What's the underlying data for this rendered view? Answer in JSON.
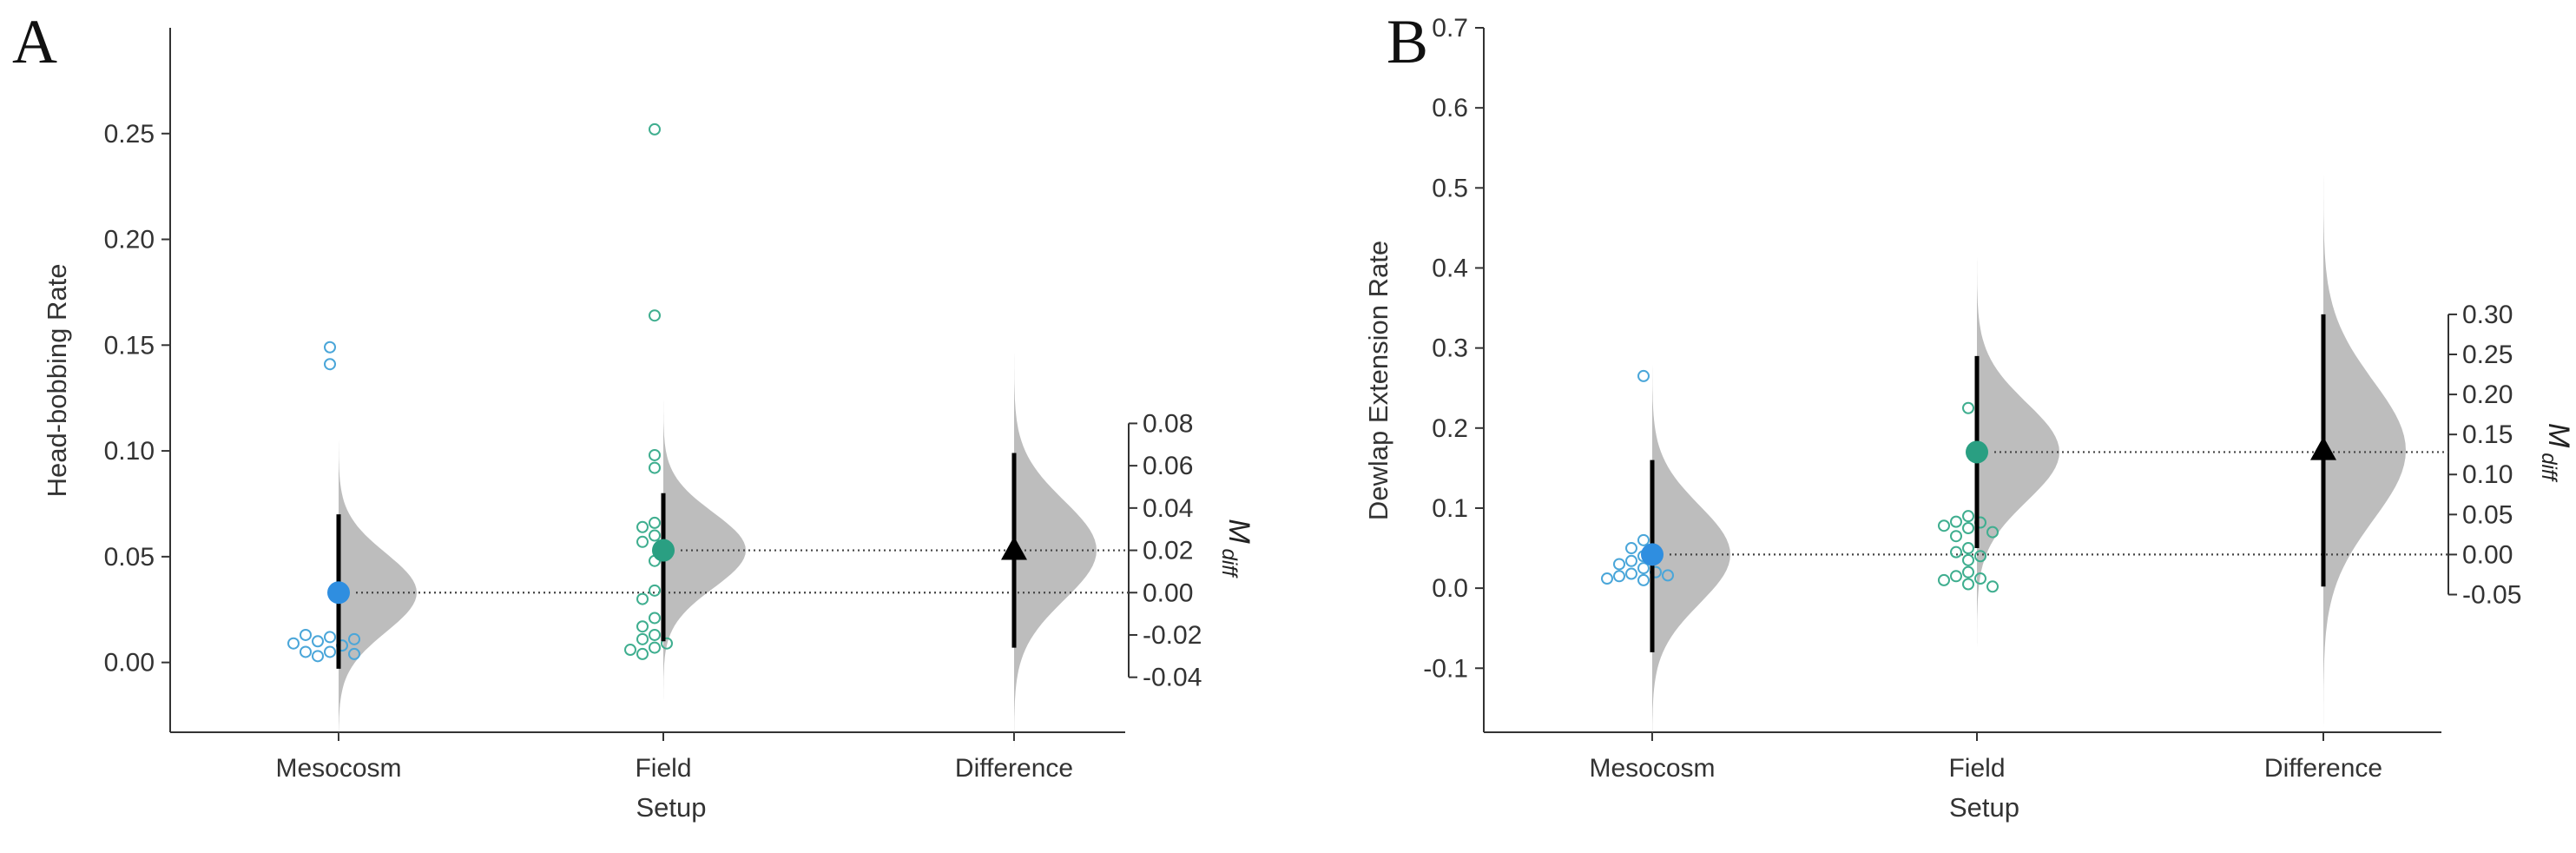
{
  "colors": {
    "mesocosm": "#2f8ee0",
    "field": "#2a9f82",
    "mesocosm_ring": "#4aa6d9",
    "field_ring": "#3fae8f",
    "difference": "#000000",
    "dist_fill": "#bdbdbd",
    "axis": "#333333"
  },
  "chart_data": [
    {
      "type": "scatter",
      "panel": "A",
      "xlabel": "Setup",
      "ylabel": "Head-bobbing Rate",
      "categories": [
        "Mesocosm",
        "Field",
        "Difference"
      ],
      "ylim": [
        -0.033,
        0.3
      ],
      "yticks": [
        0.0,
        0.05,
        0.1,
        0.15,
        0.2,
        0.25
      ],
      "ytick_labels": [
        "0.00",
        "0.05",
        "0.10",
        "0.15",
        "0.20",
        "0.25"
      ],
      "right_axis": {
        "label": "M",
        "label_sub": "diff",
        "zero_at": 0.033,
        "ticks": [
          -0.04,
          -0.02,
          0.0,
          0.02,
          0.04,
          0.06,
          0.08
        ],
        "tick_labels": [
          "-0.04",
          "-0.02",
          "0.00",
          "0.02",
          "0.04",
          "0.06",
          "0.08"
        ]
      },
      "groups": [
        {
          "name": "Mesocosm",
          "mean": 0.033,
          "ci": [
            -0.003,
            0.07
          ],
          "points": [
            0.141,
            0.149,
            0.012,
            0.005,
            0.003,
            0.01,
            0.008,
            0.013,
            0.005,
            0.004,
            0.011,
            0.009
          ]
        },
        {
          "name": "Field",
          "mean": 0.053,
          "ci": [
            0.01,
            0.08
          ],
          "points": [
            0.252,
            0.164,
            0.098,
            0.092,
            0.066,
            0.064,
            0.06,
            0.057,
            0.048,
            0.034,
            0.03,
            0.021,
            0.017,
            0.013,
            0.011,
            0.009,
            0.007,
            0.006,
            0.004
          ]
        }
      ],
      "difference": {
        "mean": 0.02,
        "ci": [
          -0.026,
          0.066
        ]
      }
    },
    {
      "type": "scatter",
      "panel": "B",
      "xlabel": "Setup",
      "ylabel": "Dewlap Extension Rate",
      "categories": [
        "Mesocosm",
        "Field",
        "Difference"
      ],
      "ylim": [
        -0.18,
        0.7
      ],
      "yticks": [
        -0.1,
        0.0,
        0.1,
        0.2,
        0.3,
        0.4,
        0.5,
        0.6,
        0.7
      ],
      "ytick_labels": [
        "-0.1",
        "0.0",
        "0.1",
        "0.2",
        "0.3",
        "0.4",
        "0.5",
        "0.6",
        "0.7"
      ],
      "right_axis": {
        "label": "M",
        "label_sub": "diff",
        "zero_at": 0.042,
        "ticks": [
          -0.05,
          0.0,
          0.05,
          0.1,
          0.15,
          0.2,
          0.25,
          0.3
        ],
        "tick_labels": [
          "-0.05",
          "0.00",
          "0.05",
          "0.10",
          "0.15",
          "0.20",
          "0.25",
          "0.30"
        ]
      },
      "groups": [
        {
          "name": "Mesocosm",
          "mean": 0.042,
          "ci": [
            -0.08,
            0.16
          ],
          "points": [
            0.265,
            0.06,
            0.05,
            0.04,
            0.038,
            0.034,
            0.03,
            0.025,
            0.02,
            0.018,
            0.016,
            0.015,
            0.012,
            0.01
          ]
        },
        {
          "name": "Field",
          "mean": 0.17,
          "ci": [
            0.05,
            0.29
          ],
          "points": [
            0.225,
            0.09,
            0.083,
            0.082,
            0.078,
            0.075,
            0.07,
            0.065,
            0.05,
            0.045,
            0.04,
            0.035,
            0.02,
            0.015,
            0.012,
            0.01,
            0.005,
            0.002
          ]
        }
      ],
      "difference": {
        "mean": 0.13,
        "ci": [
          -0.04,
          0.3
        ]
      }
    }
  ]
}
